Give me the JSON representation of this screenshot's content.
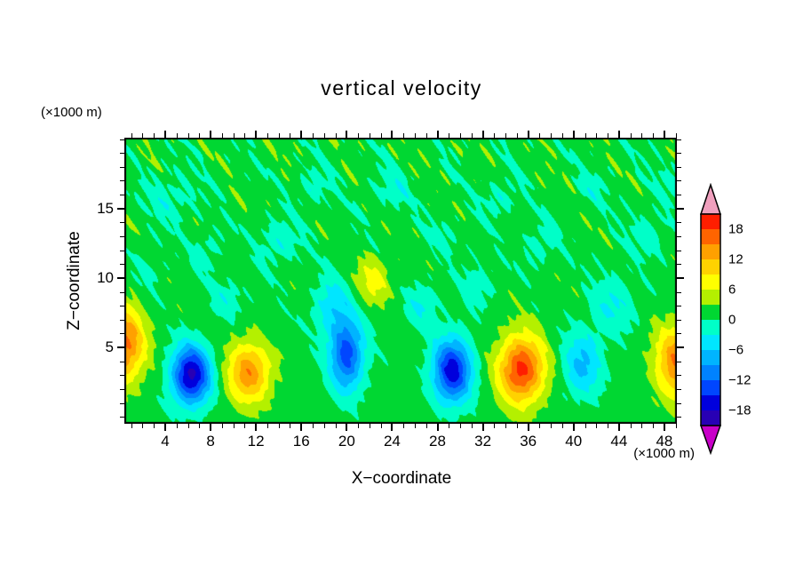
{
  "title": "vertical velocity",
  "y_axis_unit": "(×1000 m)",
  "x_axis_unit": "(×1000 m)",
  "xlabel": "X−coordinate",
  "ylabel": "Z−coordinate",
  "chart_data": {
    "type": "heatmap",
    "subtype": "filled-contour",
    "title": "vertical velocity",
    "xlabel": "X−coordinate (×1000 m)",
    "ylabel": "Z−coordinate (×1000 m)",
    "x_range": [
      0.4,
      49.1
    ],
    "z_range": [
      -0.5,
      20.1
    ],
    "x_ticks": [
      4,
      8,
      12,
      16,
      20,
      24,
      28,
      32,
      36,
      40,
      44,
      48
    ],
    "x_minor_step": 1,
    "z_ticks": [
      5,
      10,
      15
    ],
    "z_minor_step": 1,
    "levels": [
      -21,
      -18,
      -15,
      -12,
      -9,
      -6,
      -3,
      0,
      3,
      6,
      9,
      12,
      15,
      18,
      21
    ],
    "band_colors": [
      "#2800B4",
      "#0000DC",
      "#0046FF",
      "#0082FF",
      "#00B4FF",
      "#00E6FF",
      "#00FFC8",
      "#00D732",
      "#B4F000",
      "#FFFF00",
      "#FFD200",
      "#FFA000",
      "#FF6400",
      "#FF1E00"
    ],
    "under_color": "#C800C8",
    "over_color": "#F0A0BE",
    "colorbar_labels": [
      {
        "value": 18,
        "text": "18"
      },
      {
        "value": 12,
        "text": "12"
      },
      {
        "value": 6,
        "text": "6"
      },
      {
        "value": 0,
        "text": "0"
      },
      {
        "value": -6,
        "text": "−6"
      },
      {
        "value": -12,
        "text": "−12"
      },
      {
        "value": -18,
        "text": "−18"
      }
    ],
    "field": {
      "base_value": 1.3,
      "feature_format": [
        "x_center",
        "z_center",
        "peak_amplitude",
        "sigma_x",
        "sigma_z"
      ],
      "features": [
        [
          0.4,
          5.2,
          15,
          1.8,
          2.6
        ],
        [
          6.3,
          3.0,
          -20,
          1.7,
          2.1
        ],
        [
          11.4,
          3.2,
          13,
          1.9,
          2.2
        ],
        [
          20.0,
          4.5,
          -15,
          1.5,
          2.6
        ],
        [
          18.7,
          8.0,
          -6,
          1.6,
          2.0
        ],
        [
          22.3,
          9.8,
          6,
          1.5,
          1.7
        ],
        [
          29.3,
          3.3,
          -18,
          1.7,
          2.3
        ],
        [
          35.4,
          3.4,
          18,
          2.0,
          2.4
        ],
        [
          40.8,
          3.8,
          -8,
          1.7,
          2.3
        ],
        [
          49.2,
          3.9,
          14,
          2.0,
          2.6
        ],
        [
          4.5,
          15.8,
          -3.2,
          2.2,
          1.8
        ],
        [
          14.0,
          12.5,
          -3.5,
          1.8,
          1.6
        ],
        [
          9.6,
          8.6,
          -3.0,
          1.5,
          1.5
        ],
        [
          26.6,
          8.0,
          -4.0,
          1.4,
          1.7
        ],
        [
          31.6,
          9.4,
          -3.0,
          1.5,
          1.5
        ],
        [
          43.6,
          8.0,
          -4.2,
          2.0,
          2.0
        ],
        [
          46.6,
          13.0,
          -3.0,
          1.8,
          1.5
        ],
        [
          37.0,
          12.4,
          -3.0,
          1.5,
          1.5
        ],
        [
          24.0,
          16.4,
          -3.0,
          1.8,
          1.5
        ],
        [
          33.6,
          15.8,
          -3.0,
          1.6,
          1.4
        ],
        [
          17.0,
          16.6,
          -2.8,
          1.5,
          1.4
        ],
        [
          7.6,
          12.0,
          -2.6,
          1.4,
          1.4
        ],
        [
          48.6,
          16.8,
          -2.6,
          1.5,
          1.3
        ],
        [
          41.6,
          16.4,
          -2.4,
          1.4,
          1.3
        ],
        [
          28.6,
          13.0,
          -2.5,
          1.3,
          1.3
        ],
        [
          2.6,
          10.6,
          -2.5,
          1.3,
          1.3
        ]
      ],
      "noise": {
        "term_format": [
          "amplitude",
          "kx",
          "kz",
          "phase"
        ],
        "terms": [
          [
            0.5,
            1.1,
            0.9,
            0.3
          ],
          [
            0.45,
            2.3,
            1.7,
            1.1
          ],
          [
            0.4,
            3.1,
            4.3,
            2.0
          ],
          [
            0.3,
            5.3,
            2.9,
            0.7
          ],
          [
            0.25,
            7.7,
            6.1,
            1.9
          ]
        ],
        "amp_offset": 0.4,
        "amp_z_gain": 0.045
      }
    }
  }
}
